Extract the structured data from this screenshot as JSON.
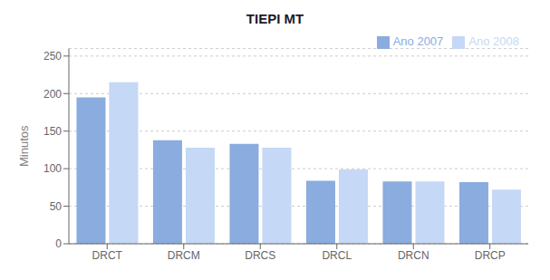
{
  "chart_data": {
    "type": "bar",
    "title": "TIEPI MT",
    "ylabel": "Minutos",
    "categories": [
      "DRCT",
      "DRCM",
      "DRCS",
      "DRCL",
      "DRCN",
      "DRCP"
    ],
    "series": [
      {
        "name": "Ano 2007",
        "color": "#8AACDF",
        "values": [
          195,
          138,
          133,
          84,
          83,
          82
        ]
      },
      {
        "name": "Ano 2008",
        "color": "#C5D8F5",
        "values": [
          215,
          128,
          128,
          99,
          83,
          72
        ]
      }
    ],
    "ylim": [
      0,
      260
    ],
    "yticks": [
      0,
      50,
      100,
      150,
      200,
      250
    ],
    "grid": true,
    "legend": "upper right"
  }
}
